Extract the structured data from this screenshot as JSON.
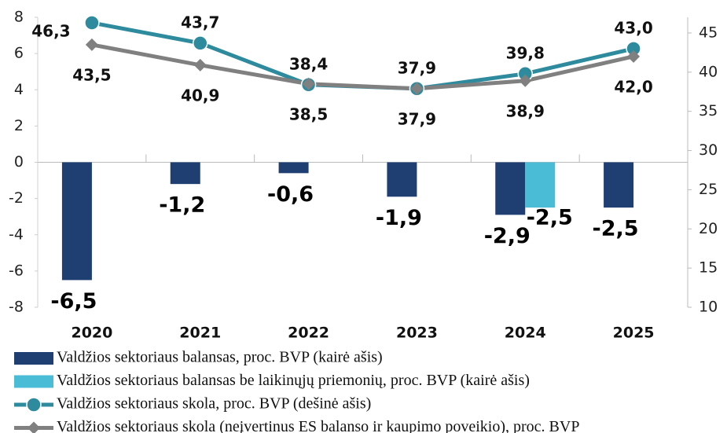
{
  "chart_data": {
    "type": "bar-line",
    "categories": [
      "2020",
      "2021",
      "2022",
      "2023",
      "2024",
      "2025"
    ],
    "series": [
      {
        "name": "Valdžios sektoriaus balansas, proc. BVP (kairė ašis)",
        "type": "bar",
        "color": "#1f3f73",
        "values": [
          -6.5,
          -1.2,
          -0.6,
          -1.9,
          -2.9,
          -2.5
        ],
        "value_labels": [
          "-6,5",
          "-1,2",
          "-0,6",
          "-1,9",
          "-2,9",
          "-2,5"
        ]
      },
      {
        "name": "Valdžios sektoriaus balansas be laikinųjų priemonių, proc. BVP (kairė ašis)",
        "type": "bar",
        "color": "#4bbcd6",
        "values": [
          null,
          null,
          null,
          null,
          -2.5,
          null
        ],
        "value_labels": [
          null,
          null,
          null,
          null,
          "-2,5",
          null
        ]
      },
      {
        "name": "Valdžios sektoriaus skola, proc. BVP (dešinė ašis)",
        "type": "line",
        "axis": "y2",
        "color": "#2e8b9e",
        "marker": "circle",
        "values": [
          46.3,
          43.7,
          38.4,
          37.9,
          39.8,
          43.0
        ],
        "value_labels": [
          "46,3",
          "43,7",
          "38,4",
          "37,9",
          "39,8",
          "43,0"
        ]
      },
      {
        "name": "Valdžios sektoriaus skola (neįvertinus ES balanso ir kaupimo poveikio), proc. BVP",
        "type": "line",
        "axis": "y2",
        "color": "#808080",
        "marker": "diamond",
        "values": [
          43.5,
          40.9,
          38.5,
          37.9,
          38.9,
          42.0
        ],
        "value_labels": [
          "43,5",
          "40,9",
          "38,5",
          "37,9",
          "38,9",
          "42,0"
        ]
      }
    ],
    "ylim": [
      -8,
      8
    ],
    "yticks": [
      -8,
      -6,
      -4,
      -2,
      0,
      2,
      4,
      6,
      8
    ],
    "y2lim": [
      10,
      47
    ],
    "y2ticks": [
      10,
      15,
      20,
      25,
      30,
      35,
      40,
      45
    ],
    "legend": "bottom"
  }
}
